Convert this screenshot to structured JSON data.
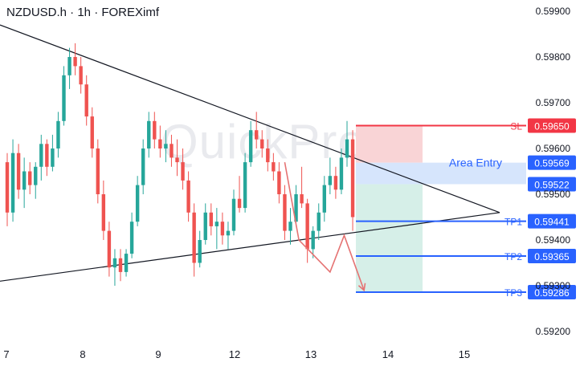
{
  "header": {
    "symbol_title": "NZDUSD.h · 1h · FOREXimf",
    "watermark": "QuickPro"
  },
  "colors": {
    "bull": "#26a69a",
    "bear": "#ef5350",
    "sl_line": "#f23645",
    "tp_line": "#2962ff",
    "entry_zone": "#cfe0fb",
    "stop_zone": "#f9d4d6",
    "target_zone": "#d6efe8",
    "triangle": "#131722",
    "path": "#e57373"
  },
  "chart_data": {
    "type": "candlestick",
    "title": "NZDUSD.h · 1h · FOREXimf",
    "xlabel": "",
    "ylabel": "",
    "x_ticks": [
      "7",
      "8",
      "9",
      "12",
      "13",
      "14",
      "15"
    ],
    "y_ticks": [
      "0.59900",
      "0.59800",
      "0.59700",
      "0.59600",
      "0.59500",
      "0.59400",
      "0.59300",
      "0.59200"
    ],
    "ylim": [
      0.5917,
      0.5993
    ],
    "grid": false,
    "price_levels": [
      {
        "label": "SL",
        "price": "0.59650",
        "kind": "sl"
      },
      {
        "label": "Area Entry",
        "price": "0.59569",
        "kind": "entry"
      },
      {
        "label": "",
        "price": "0.59522",
        "kind": "entry"
      },
      {
        "label": "TP1",
        "price": "0.59441",
        "kind": "tp"
      },
      {
        "label": "TP2",
        "price": "0.59365",
        "kind": "tp"
      },
      {
        "label": "TP3",
        "price": "0.59286",
        "kind": "tp"
      }
    ],
    "triangle": {
      "upper": [
        [
          0,
          0.5987
        ],
        [
          70,
          0.5946
        ]
      ],
      "lower": [
        [
          0,
          0.5931
        ],
        [
          70,
          0.5946
        ]
      ]
    },
    "projection_path": [
      [
        49,
        0.5957
      ],
      [
        51.5,
        0.594
      ],
      [
        57,
        0.5933
      ],
      [
        59.5,
        0.5941
      ],
      [
        63,
        0.5929
      ]
    ],
    "candles": [
      [
        0.5957,
        0.5959,
        0.5943,
        0.5946
      ],
      [
        0.5946,
        0.5962,
        0.5944,
        0.5959
      ],
      [
        0.5959,
        0.5961,
        0.5949,
        0.5951
      ],
      [
        0.5951,
        0.5958,
        0.5947,
        0.5955
      ],
      [
        0.5955,
        0.5957,
        0.595,
        0.5952
      ],
      [
        0.5952,
        0.5957,
        0.5949,
        0.5956
      ],
      [
        0.5956,
        0.5963,
        0.5953,
        0.5961
      ],
      [
        0.5961,
        0.5962,
        0.5954,
        0.5956
      ],
      [
        0.5956,
        0.5963,
        0.5955,
        0.596
      ],
      [
        0.596,
        0.5968,
        0.5958,
        0.5966
      ],
      [
        0.5966,
        0.5978,
        0.5965,
        0.5976
      ],
      [
        0.5976,
        0.5982,
        0.5973,
        0.598
      ],
      [
        0.598,
        0.5983,
        0.5976,
        0.5978
      ],
      [
        0.5978,
        0.598,
        0.5972,
        0.5974
      ],
      [
        0.5974,
        0.5976,
        0.5965,
        0.5967
      ],
      [
        0.5967,
        0.5969,
        0.5958,
        0.596
      ],
      [
        0.596,
        0.5962,
        0.5948,
        0.595
      ],
      [
        0.595,
        0.5953,
        0.594,
        0.5942
      ],
      [
        0.5942,
        0.5944,
        0.5932,
        0.5934
      ],
      [
        0.5934,
        0.5938,
        0.593,
        0.5936
      ],
      [
        0.5936,
        0.5938,
        0.5931,
        0.5933
      ],
      [
        0.5933,
        0.5938,
        0.5932,
        0.5937
      ],
      [
        0.5937,
        0.5946,
        0.5936,
        0.5944
      ],
      [
        0.5944,
        0.5954,
        0.5943,
        0.5952
      ],
      [
        0.5952,
        0.5962,
        0.595,
        0.596
      ],
      [
        0.596,
        0.5968,
        0.5958,
        0.5966
      ],
      [
        0.5966,
        0.5968,
        0.596,
        0.5962
      ],
      [
        0.5962,
        0.5965,
        0.5958,
        0.596
      ],
      [
        0.596,
        0.5964,
        0.5957,
        0.5961
      ],
      [
        0.5961,
        0.5963,
        0.5956,
        0.5958
      ],
      [
        0.5958,
        0.5962,
        0.5954,
        0.5957
      ],
      [
        0.5957,
        0.596,
        0.5951,
        0.5953
      ],
      [
        0.5953,
        0.5955,
        0.5944,
        0.5946
      ],
      [
        0.5946,
        0.5948,
        0.5932,
        0.5935
      ],
      [
        0.5935,
        0.5942,
        0.5934,
        0.594
      ],
      [
        0.594,
        0.5948,
        0.5939,
        0.5946
      ],
      [
        0.5946,
        0.5948,
        0.5941,
        0.5943
      ],
      [
        0.5943,
        0.5947,
        0.5938,
        0.5944
      ],
      [
        0.5944,
        0.5946,
        0.5939,
        0.5941
      ],
      [
        0.5941,
        0.5944,
        0.5938,
        0.5942
      ],
      [
        0.5942,
        0.5951,
        0.5941,
        0.5949
      ],
      [
        0.5949,
        0.5954,
        0.5946,
        0.5947
      ],
      [
        0.5947,
        0.5959,
        0.5946,
        0.5957
      ],
      [
        0.5957,
        0.5966,
        0.5956,
        0.5964
      ],
      [
        0.5964,
        0.5968,
        0.596,
        0.5962
      ],
      [
        0.5962,
        0.5964,
        0.5958,
        0.596
      ],
      [
        0.596,
        0.5962,
        0.5955,
        0.5957
      ],
      [
        0.5957,
        0.5959,
        0.5953,
        0.5955
      ],
      [
        0.5955,
        0.5957,
        0.5948,
        0.595
      ],
      [
        0.595,
        0.5952,
        0.594,
        0.5942
      ],
      [
        0.5942,
        0.5947,
        0.5939,
        0.5944
      ],
      [
        0.5944,
        0.5952,
        0.5943,
        0.595
      ],
      [
        0.595,
        0.5956,
        0.5947,
        0.5948
      ],
      [
        0.5948,
        0.5949,
        0.5935,
        0.5938
      ],
      [
        0.5938,
        0.5943,
        0.5936,
        0.5942
      ],
      [
        0.5942,
        0.5948,
        0.594,
        0.5946
      ],
      [
        0.5946,
        0.5954,
        0.5944,
        0.5952
      ],
      [
        0.5952,
        0.5958,
        0.595,
        0.5954
      ],
      [
        0.5954,
        0.5956,
        0.5949,
        0.5951
      ],
      [
        0.5951,
        0.596,
        0.595,
        0.5958
      ],
      [
        0.5958,
        0.5966,
        0.5956,
        0.5962
      ],
      [
        0.5962,
        0.5964,
        0.5942,
        0.5945
      ]
    ]
  }
}
